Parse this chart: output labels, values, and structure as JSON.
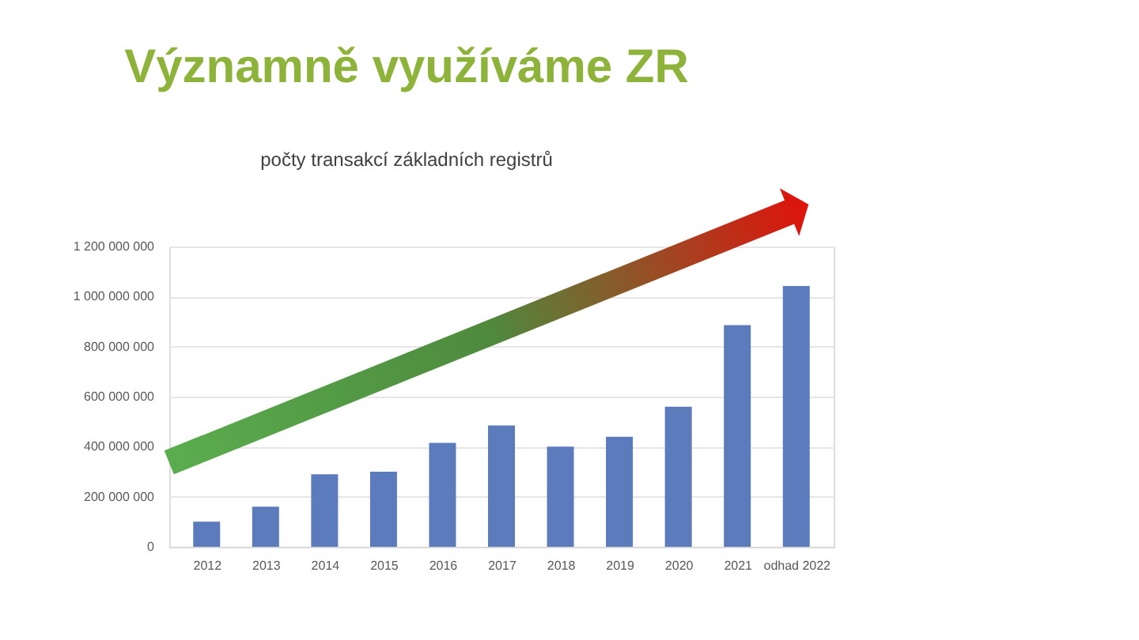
{
  "chart_data": {
    "type": "bar",
    "title": "Významně využíváme ZR",
    "subtitle": "počty transakcí základních registrů",
    "categories": [
      "2012",
      "2013",
      "2014",
      "2015",
      "2016",
      "2017",
      "2018",
      "2019",
      "2020",
      "2021",
      "odhad 2022"
    ],
    "values": [
      100000000,
      160000000,
      290000000,
      300000000,
      415000000,
      485000000,
      400000000,
      440000000,
      560000000,
      886000000,
      1042000000
    ],
    "color": "#5b7bbd",
    "ylim": [
      0,
      1200000000
    ],
    "yticks": [
      {
        "value": 0,
        "label": "0"
      },
      {
        "value": 200000000,
        "label": "200 000 000"
      },
      {
        "value": 400000000,
        "label": "400 000 000"
      },
      {
        "value": 600000000,
        "label": "600 000 000"
      },
      {
        "value": 800000000,
        "label": "800 000 000"
      },
      {
        "value": 1000000000,
        "label": "1 000 000 000"
      },
      {
        "value": 1200000000,
        "label": "1 200 000 000"
      }
    ],
    "grid": "y"
  }
}
